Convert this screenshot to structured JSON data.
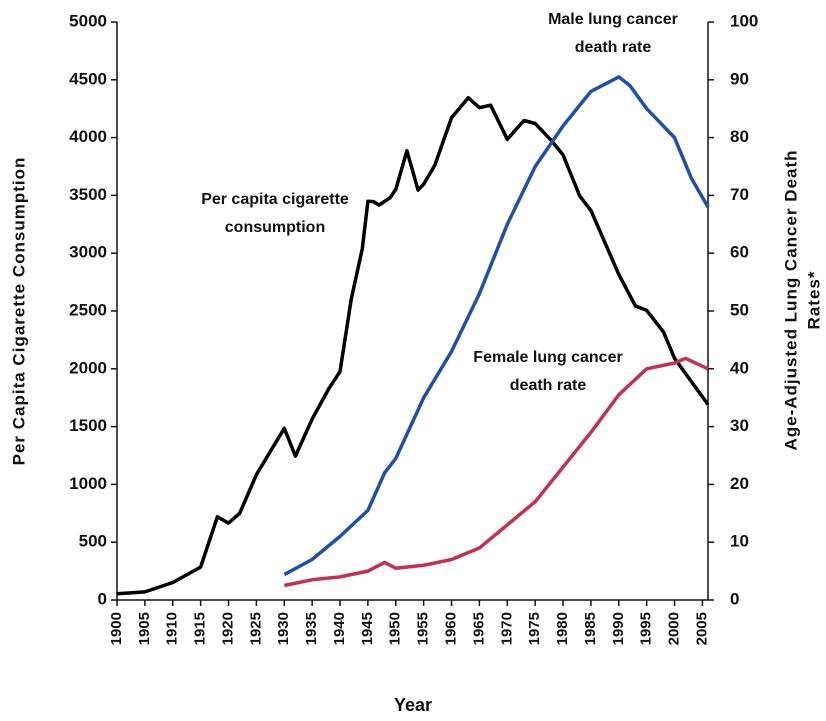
{
  "chart_data": {
    "type": "line",
    "xlabel": "Year",
    "ylabel": "Per Capita Cigarette Consumption",
    "y2label": [
      "Age-Adjusted Lung Cancer Death",
      "Rates*"
    ],
    "xlim": [
      1900,
      2006
    ],
    "xticks": [
      1900,
      1905,
      1910,
      1915,
      1920,
      1925,
      1930,
      1935,
      1940,
      1945,
      1950,
      1955,
      1960,
      1965,
      1970,
      1975,
      1980,
      1985,
      1990,
      1995,
      2000,
      2005
    ],
    "ylim": [
      0,
      5000
    ],
    "yticks": [
      0,
      500,
      1000,
      1500,
      2000,
      2500,
      3000,
      3500,
      4000,
      4500,
      5000
    ],
    "y2lim": [
      0,
      100
    ],
    "y2ticks": [
      0,
      10,
      20,
      30,
      40,
      50,
      60,
      70,
      80,
      90,
      100
    ],
    "grid": false,
    "series": [
      {
        "name": [
          "Per capita cigarette",
          "consumption"
        ],
        "color": "#000000",
        "x": [
          1900,
          1905,
          1910,
          1915,
          1918,
          1920,
          1922,
          1925,
          1930,
          1932,
          1935,
          1938,
          1940,
          1942,
          1944,
          1945,
          1946,
          1947,
          1949,
          1950,
          1952,
          1954,
          1955,
          1957,
          1960,
          1963,
          1965,
          1967,
          1970,
          1973,
          1975,
          1978,
          1980,
          1983,
          1985,
          1990,
          1993,
          1995,
          1998,
          2000,
          2003,
          2006
        ],
        "values": [
          54,
          70,
          151,
          285,
          720,
          665,
          750,
          1085,
          1485,
          1245,
          1564,
          1830,
          1976,
          2600,
          3039,
          3449,
          3446,
          3416,
          3480,
          3552,
          3886,
          3546,
          3597,
          3760,
          4171,
          4345,
          4259,
          4280,
          3985,
          4148,
          4122,
          3970,
          3851,
          3494,
          3370,
          2817,
          2543,
          2505,
          2320,
          2092,
          1890,
          1691
        ]
      },
      {
        "name": [
          "Male lung cancer",
          "death rate"
        ],
        "color": "#1f4fa8",
        "axis": "y2",
        "x": [
          1930,
          1935,
          1940,
          1945,
          1948,
          1950,
          1955,
          1960,
          1965,
          1970,
          1975,
          1980,
          1985,
          1990,
          1992,
          1995,
          2000,
          2003,
          2006
        ],
        "values": [
          4.4,
          7,
          11,
          15.5,
          22,
          24.5,
          35,
          43,
          53,
          65,
          75,
          82,
          88,
          90.5,
          89,
          85,
          80,
          73,
          68
        ]
      },
      {
        "name": [
          "Female lung cancer",
          "death rate"
        ],
        "color": "#c0324f",
        "axis": "y2",
        "x": [
          1930,
          1935,
          1940,
          1945,
          1948,
          1950,
          1955,
          1960,
          1965,
          1970,
          1975,
          1980,
          1985,
          1990,
          1995,
          2000,
          2002,
          2006
        ],
        "values": [
          2.5,
          3.5,
          4,
          5,
          6.5,
          5.5,
          6,
          7,
          9,
          13,
          17,
          23,
          29,
          35.5,
          40,
          41,
          41.8,
          40
        ]
      }
    ]
  }
}
